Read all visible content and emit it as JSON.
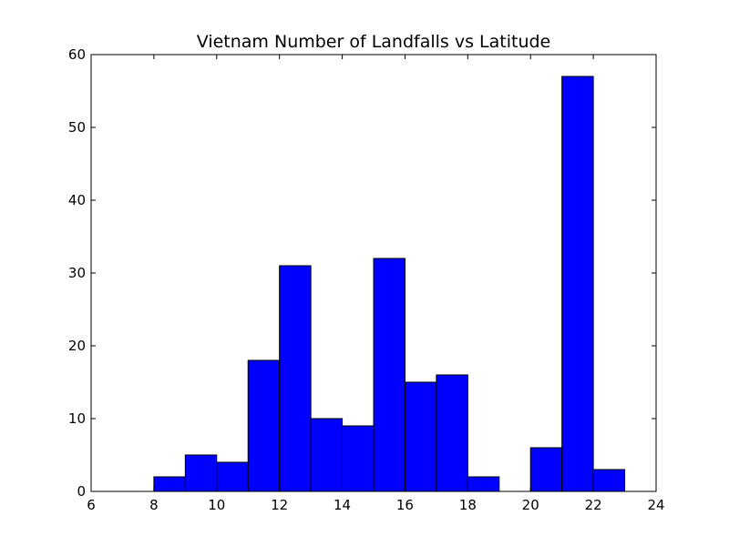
{
  "chart_data": {
    "type": "bar",
    "title": "Vietnam Number of Landfalls vs Latitude",
    "xlabel": "",
    "ylabel": "",
    "xlim": [
      6,
      24
    ],
    "ylim": [
      0,
      60
    ],
    "xticks": [
      6,
      8,
      10,
      12,
      14,
      16,
      18,
      20,
      22,
      24
    ],
    "yticks": [
      0,
      10,
      20,
      30,
      40,
      50,
      60
    ],
    "bins": [
      {
        "x0": 7,
        "x1": 8,
        "value": 0
      },
      {
        "x0": 8,
        "x1": 9,
        "value": 2
      },
      {
        "x0": 9,
        "x1": 10,
        "value": 5
      },
      {
        "x0": 10,
        "x1": 11,
        "value": 4
      },
      {
        "x0": 11,
        "x1": 12,
        "value": 18
      },
      {
        "x0": 12,
        "x1": 13,
        "value": 31
      },
      {
        "x0": 13,
        "x1": 14,
        "value": 10
      },
      {
        "x0": 14,
        "x1": 15,
        "value": 9
      },
      {
        "x0": 15,
        "x1": 16,
        "value": 32
      },
      {
        "x0": 16,
        "x1": 17,
        "value": 15
      },
      {
        "x0": 17,
        "x1": 18,
        "value": 16
      },
      {
        "x0": 18,
        "x1": 19,
        "value": 2
      },
      {
        "x0": 19,
        "x1": 20,
        "value": 0
      },
      {
        "x0": 20,
        "x1": 21,
        "value": 6
      },
      {
        "x0": 21,
        "x1": 22,
        "value": 57
      },
      {
        "x0": 22,
        "x1": 23,
        "value": 3
      }
    ],
    "bar_color": "#0000ff",
    "edge_color": "#000000",
    "grid": false,
    "legend": "none"
  }
}
